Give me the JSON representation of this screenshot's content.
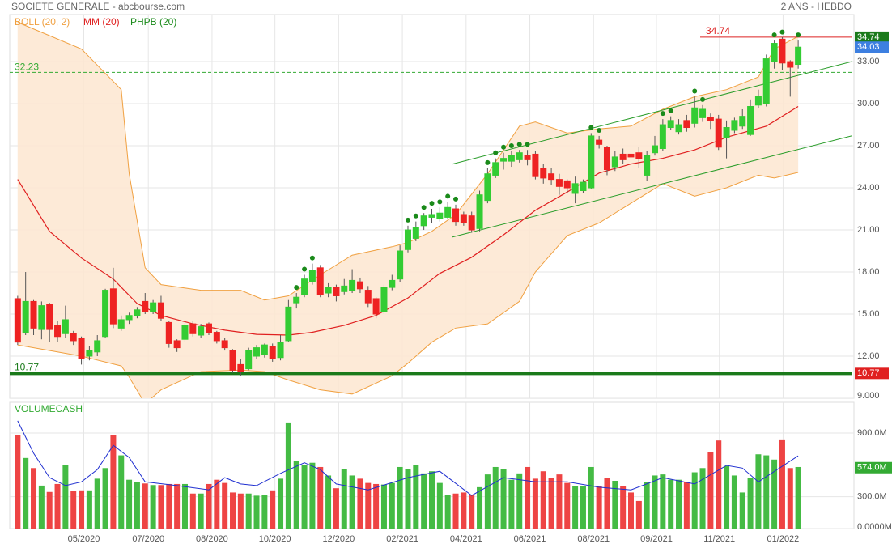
{
  "header": {
    "title": "SOCIETE GENERALE - abcbourse.com",
    "period": "2 ANS - HEBDO"
  },
  "chart_data": [
    {
      "type": "candlestick",
      "xlim": [
        -1,
        105
      ],
      "ylim": [
        9,
        36.35
      ],
      "xticks": [
        {
          "value": 8.3,
          "label": "05/2020"
        },
        {
          "value": 16.4,
          "label": "07/2020"
        },
        {
          "value": 24.4,
          "label": "08/2020"
        },
        {
          "value": 32.3,
          "label": "10/2020"
        },
        {
          "value": 40.3,
          "label": "12/2020"
        },
        {
          "value": 48.3,
          "label": "02/2021"
        },
        {
          "value": 56.3,
          "label": "04/2021"
        },
        {
          "value": 64.3,
          "label": "06/2021"
        },
        {
          "value": 72.3,
          "label": "08/2021"
        },
        {
          "value": 80.2,
          "label": "09/2021"
        },
        {
          "value": 88.1,
          "label": "11/2021"
        },
        {
          "value": 96.1,
          "label": "01/2022"
        }
      ],
      "yticks": [
        {
          "value": 9,
          "label": "9.000"
        },
        {
          "value": 12,
          "label": "12.00"
        },
        {
          "value": 15,
          "label": "15.00"
        },
        {
          "value": 18,
          "label": "18.00"
        },
        {
          "value": 21,
          "label": "21.00"
        },
        {
          "value": 24,
          "label": "24.00"
        },
        {
          "value": 27,
          "label": "27.00"
        },
        {
          "value": 30,
          "label": "30.00"
        },
        {
          "value": 33,
          "label": "33.00"
        }
      ],
      "grid": true,
      "up_color": "#33cc33",
      "down_color": "#ee2222",
      "open": [
        16.1,
        13.7,
        15.9,
        13.9,
        15.7,
        14.2,
        13.6,
        13.6,
        13.3,
        12.0,
        12.3,
        13.4,
        16.8,
        14.0,
        14.6,
        14.9,
        15.9,
        15.2,
        15.8,
        14.4,
        13.1,
        13.2,
        14.3,
        13.5,
        14.3,
        13.7,
        13.1,
        12.4,
        11.4,
        11.1,
        12.0,
        12.1,
        12.7,
        11.9,
        13.1,
        15.8,
        16.4,
        17.3,
        18.3,
        16.5,
        16.9,
        16.6,
        16.7,
        17.3,
        16.7,
        16.1,
        15.2,
        16.9,
        17.5,
        19.6,
        20.4,
        21.3,
        21.9,
        21.8,
        21.9,
        22.5,
        22.1,
        22.0,
        21.1,
        23.1,
        24.9,
        25.9,
        25.9,
        26.0,
        26.3,
        26.4,
        25.4,
        25.0,
        24.6,
        24.5,
        23.6,
        23.8,
        24.0,
        27.4,
        26.9,
        25.5,
        26.4,
        26.4,
        26.5,
        24.9,
        26.5,
        26.8,
        28.3,
        28.0,
        28.8,
        28.6,
        29.0,
        29.0,
        28.9,
        27.6,
        28.1,
        28.4,
        27.8,
        29.9,
        30.0,
        33.0,
        34.6,
        33.0,
        32.8
      ],
      "high": [
        16.3,
        18.0,
        16.0,
        15.9,
        15.8,
        14.5,
        15.6,
        13.8,
        13.4,
        12.7,
        13.5,
        16.8,
        18.3,
        14.9,
        15.1,
        15.5,
        16.5,
        16.0,
        16.3,
        14.5,
        13.2,
        14.4,
        14.5,
        14.3,
        14.4,
        13.8,
        13.3,
        12.5,
        11.8,
        12.6,
        12.8,
        12.9,
        12.9,
        13.5,
        16.0,
        16.5,
        17.8,
        18.6,
        18.5,
        17.2,
        17.1,
        17.5,
        18.2,
        17.6,
        17.0,
        16.2,
        17.1,
        17.8,
        19.9,
        21.3,
        21.6,
        22.2,
        22.5,
        22.6,
        23.0,
        22.8,
        22.3,
        22.3,
        23.8,
        25.4,
        26.1,
        26.5,
        26.6,
        26.7,
        26.7,
        26.6,
        25.7,
        25.4,
        25.0,
        24.6,
        24.8,
        24.6,
        27.9,
        27.7,
        27.0,
        26.6,
        26.8,
        26.7,
        26.9,
        26.6,
        27.7,
        28.9,
        29.1,
        28.9,
        29.2,
        30.5,
        29.9,
        29.3,
        29.2,
        28.8,
        29.0,
        29.6,
        30.3,
        31.0,
        33.5,
        34.5,
        34.74,
        33.1,
        34.5
      ],
      "low": [
        12.8,
        13.5,
        13.5,
        13.2,
        13.0,
        13.0,
        13.3,
        12.8,
        11.4,
        11.7,
        12.0,
        13.3,
        14.0,
        13.8,
        14.3,
        14.7,
        15.0,
        15.0,
        14.5,
        12.6,
        12.3,
        13.0,
        13.4,
        13.3,
        13.5,
        12.9,
        12.4,
        10.8,
        10.6,
        11.0,
        11.8,
        11.9,
        11.6,
        11.7,
        13.0,
        15.4,
        16.2,
        17.1,
        16.2,
        16.2,
        15.9,
        16.4,
        16.5,
        16.5,
        15.5,
        14.7,
        15.0,
        16.7,
        17.3,
        19.4,
        20.2,
        21.0,
        21.5,
        21.6,
        21.8,
        21.3,
        21.3,
        20.8,
        20.9,
        22.9,
        24.7,
        25.3,
        25.5,
        25.8,
        25.6,
        24.6,
        24.3,
        24.2,
        23.5,
        23.6,
        22.9,
        23.6,
        23.9,
        26.8,
        24.9,
        25.2,
        25.7,
        25.8,
        25.4,
        24.5,
        26.3,
        26.6,
        28.1,
        27.8,
        28.0,
        28.3,
        28.7,
        28.2,
        26.7,
        26.1,
        27.9,
        28.2,
        27.7,
        29.7,
        29.8,
        32.5,
        32.4,
        30.5,
        32.5
      ],
      "close": [
        13.0,
        15.9,
        14.0,
        15.6,
        13.9,
        13.4,
        14.6,
        13.1,
        11.8,
        12.4,
        13.1,
        16.7,
        14.3,
        14.6,
        14.9,
        15.3,
        15.2,
        15.8,
        14.7,
        12.9,
        12.6,
        14.2,
        13.6,
        14.1,
        13.7,
        13.1,
        12.6,
        11.0,
        10.9,
        12.4,
        12.6,
        12.8,
        11.8,
        13.0,
        15.5,
        16.2,
        17.5,
        18.1,
        16.4,
        16.9,
        16.3,
        17.0,
        17.4,
        16.8,
        15.8,
        15.0,
        16.9,
        17.4,
        19.5,
        21.0,
        21.2,
        22.0,
        22.1,
        22.2,
        22.6,
        21.6,
        21.5,
        21.0,
        23.5,
        25.0,
        25.8,
        26.1,
        26.3,
        26.5,
        26.0,
        24.8,
        24.7,
        24.6,
        24.1,
        24.0,
        24.3,
        24.4,
        27.7,
        27.1,
        25.3,
        26.2,
        26.0,
        26.2,
        26.1,
        26.3,
        27.0,
        28.5,
        28.8,
        28.5,
        28.3,
        29.7,
        29.6,
        28.8,
        26.9,
        28.3,
        28.8,
        29.1,
        29.8,
        30.5,
        33.2,
        34.3,
        32.9,
        32.6,
        34.03
      ],
      "series": [
        {
          "name": "BOLL (20, 2)",
          "color": "#f0a040",
          "fill": "#fde6d0",
          "x": [
            0,
            8,
            13,
            14,
            16,
            18,
            23,
            28,
            31,
            34,
            38,
            42,
            47,
            49,
            52,
            55,
            59,
            63,
            65,
            69,
            73,
            77,
            81,
            85,
            89,
            93,
            95,
            98
          ],
          "upper": [
            35.8,
            33.9,
            31.0,
            25.0,
            18.3,
            17.1,
            16.7,
            16.7,
            16.0,
            16.3,
            17.8,
            19.2,
            19.8,
            20.1,
            20.9,
            22.1,
            25.0,
            28.4,
            28.7,
            27.9,
            28.2,
            28.4,
            29.6,
            30.5,
            31.0,
            31.9,
            33.9,
            34.8
          ],
          "lower": [
            12.8,
            12.0,
            11.3,
            10.5,
            8.6,
            9.6,
            10.9,
            11.0,
            10.9,
            10.3,
            9.6,
            9.3,
            10.6,
            11.5,
            13.0,
            14.0,
            14.3,
            15.9,
            18.0,
            20.6,
            21.5,
            22.9,
            24.3,
            23.4,
            24.0,
            24.9,
            24.7,
            25.1
          ]
        },
        {
          "name": "MM (20)",
          "color": "#e02020",
          "x": [
            0,
            4,
            8,
            12,
            15,
            18,
            22,
            26,
            30,
            34,
            37,
            41,
            45,
            49,
            53,
            57,
            61,
            65,
            69,
            73,
            77,
            81,
            85,
            89,
            94,
            98
          ],
          "values": [
            24.6,
            20.9,
            19.0,
            17.5,
            15.75,
            14.9,
            14.3,
            13.85,
            13.55,
            13.5,
            13.7,
            14.2,
            14.9,
            16.15,
            17.9,
            19.05,
            20.65,
            22.4,
            23.7,
            25.05,
            25.7,
            26.1,
            26.7,
            27.6,
            28.4,
            29.8
          ]
        },
        {
          "name": "PHPB (20)",
          "color": "#1a8a1a",
          "values": [
            null,
            null,
            null,
            null,
            null,
            null,
            null,
            null,
            null,
            null,
            null,
            null,
            null,
            null,
            null,
            null,
            null,
            null,
            null,
            null,
            null,
            null,
            null,
            null,
            null,
            null,
            null,
            null,
            null,
            null,
            null,
            null,
            null,
            null,
            null,
            16.9,
            18.2,
            19.0,
            null,
            null,
            null,
            null,
            null,
            null,
            null,
            null,
            null,
            null,
            null,
            21.7,
            22.0,
            22.6,
            22.9,
            23.0,
            23.4,
            23.2,
            null,
            null,
            null,
            25.8,
            26.5,
            26.9,
            27.0,
            27.1,
            27.1,
            null,
            null,
            null,
            null,
            null,
            null,
            null,
            28.3,
            28.1,
            null,
            null,
            null,
            null,
            null,
            null,
            null,
            29.3,
            29.5,
            null,
            null,
            30.9,
            30.3,
            null,
            null,
            null,
            null,
            null,
            null,
            null,
            null,
            34.9,
            35.1,
            null,
            34.9
          ]
        }
      ],
      "levels": [
        {
          "value": 32.23,
          "color": "#33aa33",
          "style": "dashed"
        },
        {
          "value": 34.74,
          "color": "#dd2222",
          "style": "right"
        },
        {
          "value": 10.77,
          "color": "#1a7a1a",
          "style": "thick"
        }
      ],
      "trendlines": [
        {
          "color": "#2a9d2a",
          "x": [
            54.5,
            104.7
          ],
          "values": [
            25.68,
            33.0
          ]
        },
        {
          "color": "#2a9d2a",
          "x": [
            54.5,
            104.7
          ],
          "values": [
            20.48,
            27.7
          ]
        }
      ]
    },
    {
      "type": "bar",
      "title": "VOLUMECASH",
      "xlim": [
        -1,
        105
      ],
      "ylim": [
        0,
        1190
      ],
      "yticks": [
        {
          "value": 0,
          "label": "0.0000M"
        },
        {
          "value": 300,
          "label": "300.0M"
        },
        {
          "value": 900,
          "label": "900.0M"
        }
      ],
      "up_color": "#44bb44",
      "down_color": "#ee4444",
      "values": [
        885,
        665,
        570,
        405,
        345,
        420,
        600,
        355,
        360,
        360,
        470,
        570,
        880,
        690,
        460,
        440,
        425,
        410,
        410,
        420,
        420,
        420,
        330,
        330,
        420,
        460,
        430,
        340,
        330,
        330,
        310,
        320,
        360,
        470,
        1000,
        640,
        600,
        620,
        580,
        500,
        380,
        560,
        500,
        470,
        430,
        420,
        415,
        430,
        580,
        560,
        600,
        520,
        540,
        430,
        320,
        330,
        340,
        320,
        390,
        510,
        580,
        560,
        460,
        520,
        580,
        470,
        540,
        480,
        510,
        430,
        400,
        400,
        580,
        400,
        480,
        450,
        400,
        340,
        260,
        440,
        500,
        510,
        460,
        460,
        440,
        530,
        570,
        720,
        830,
        590,
        500,
        340,
        480,
        700,
        690,
        650,
        840,
        570,
        580
      ],
      "average": {
        "color": "#1f2fd0",
        "x": [
          0,
          2,
          4,
          6,
          8,
          10,
          12,
          14,
          16,
          20,
          24,
          26,
          28,
          30,
          33,
          36,
          38,
          40,
          44,
          49,
          53,
          57,
          61,
          65,
          69,
          73,
          77,
          81,
          85,
          89,
          91,
          93,
          98
        ],
        "values": [
          1015,
          710,
          480,
          405,
          440,
          555,
          785,
          670,
          440,
          405,
          365,
          480,
          420,
          405,
          520,
          620,
          555,
          420,
          365,
          480,
          540,
          312,
          480,
          440,
          440,
          390,
          365,
          480,
          420,
          595,
          570,
          440,
          685
        ]
      },
      "last_label": {
        "value": 574,
        "label": "574.0M",
        "color": "#33aa33"
      }
    }
  ]
}
